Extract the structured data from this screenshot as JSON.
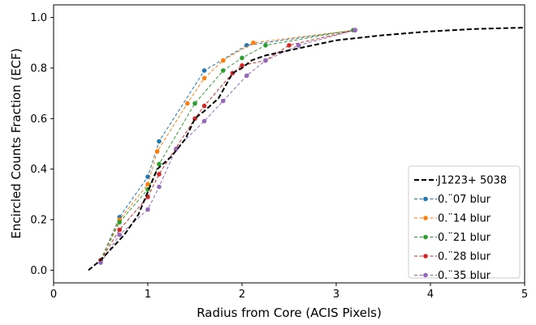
{
  "chart_data": {
    "type": "line",
    "xlabel": "Radius from Core (ACIS Pixels)",
    "ylabel": "Encircled Counts Fraction (ECF)",
    "xlim": [
      0,
      5
    ],
    "ylim": [
      -0.05,
      1.05
    ],
    "xticks": [
      "0",
      "1",
      "2",
      "3",
      "4",
      "5"
    ],
    "yticks": [
      "0.0",
      "0.2",
      "0.4",
      "0.6",
      "0.8",
      "1.0"
    ],
    "grid": false,
    "legend_position": "lower-right",
    "series": [
      {
        "name": "J1223+ 5038",
        "color": "#000000",
        "style": "dashed-thick",
        "markers": false,
        "x": [
          0.37,
          0.5,
          0.6,
          0.75,
          0.9,
          1.0,
          1.1,
          1.25,
          1.4,
          1.5,
          1.6,
          1.75,
          1.9,
          2.0,
          2.1,
          2.25,
          2.5,
          2.75,
          3.0,
          3.5,
          4.0,
          4.5,
          5.0
        ],
        "y": [
          0.0,
          0.04,
          0.08,
          0.14,
          0.22,
          0.31,
          0.4,
          0.45,
          0.52,
          0.6,
          0.63,
          0.68,
          0.78,
          0.8,
          0.83,
          0.85,
          0.87,
          0.89,
          0.91,
          0.93,
          0.945,
          0.955,
          0.96
        ]
      },
      {
        "name": "0.¨07 blur",
        "color": "#1f77b4",
        "x": [
          0.5,
          0.7,
          1.0,
          1.12,
          1.6,
          2.05,
          3.2
        ],
        "y": [
          0.04,
          0.21,
          0.37,
          0.51,
          0.79,
          0.89,
          0.95
        ]
      },
      {
        "name": "0.¨14 blur",
        "color": "#ff7f0e",
        "x": [
          0.5,
          0.7,
          1.0,
          1.1,
          1.42,
          1.6,
          1.8,
          2.12,
          3.2
        ],
        "y": [
          0.04,
          0.2,
          0.34,
          0.47,
          0.66,
          0.76,
          0.83,
          0.9,
          0.95
        ]
      },
      {
        "name": "0.¨21 blur",
        "color": "#2ca02c",
        "x": [
          0.5,
          0.7,
          1.0,
          1.12,
          1.5,
          1.8,
          2.0,
          2.25,
          3.18
        ],
        "y": [
          0.04,
          0.19,
          0.32,
          0.42,
          0.66,
          0.79,
          0.84,
          0.89,
          0.95
        ]
      },
      {
        "name": "0.¨28 blur",
        "color": "#d62728",
        "x": [
          0.5,
          0.7,
          1.0,
          1.12,
          1.5,
          1.6,
          1.9,
          2.0,
          2.25,
          2.5,
          3.2
        ],
        "y": [
          0.04,
          0.16,
          0.29,
          0.38,
          0.6,
          0.65,
          0.78,
          0.81,
          0.83,
          0.89,
          0.95
        ]
      },
      {
        "name": "0.¨35 blur",
        "color": "#9467bd",
        "x": [
          0.5,
          0.7,
          1.0,
          1.12,
          1.3,
          1.6,
          1.8,
          2.05,
          2.25,
          2.6,
          3.2
        ],
        "y": [
          0.03,
          0.14,
          0.24,
          0.33,
          0.48,
          0.59,
          0.67,
          0.77,
          0.83,
          0.89,
          0.95
        ]
      }
    ]
  }
}
